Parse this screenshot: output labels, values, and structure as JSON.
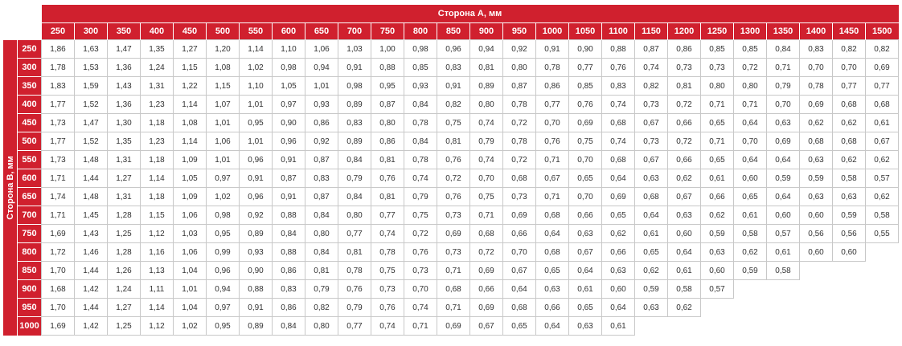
{
  "header": {
    "side_a_title": "Сторона А, мм",
    "side_b_title": "Сторона В, мм"
  },
  "columns": [
    "250",
    "300",
    "350",
    "400",
    "450",
    "500",
    "550",
    "600",
    "650",
    "700",
    "750",
    "800",
    "850",
    "900",
    "950",
    "1000",
    "1050",
    "1100",
    "1150",
    "1200",
    "1250",
    "1300",
    "1350",
    "1400",
    "1450",
    "1500"
  ],
  "rows": [
    {
      "label": "250",
      "values": [
        "1,86",
        "1,63",
        "1,47",
        "1,35",
        "1,27",
        "1,20",
        "1,14",
        "1,10",
        "1,06",
        "1,03",
        "1,00",
        "0,98",
        "0,96",
        "0,94",
        "0,92",
        "0,91",
        "0,90",
        "0,88",
        "0,87",
        "0,86",
        "0,85",
        "0,85",
        "0,84",
        "0,83",
        "0,82",
        "0,82"
      ]
    },
    {
      "label": "300",
      "values": [
        "1,78",
        "1,53",
        "1,36",
        "1,24",
        "1,15",
        "1,08",
        "1,02",
        "0,98",
        "0,94",
        "0,91",
        "0,88",
        "0,85",
        "0,83",
        "0,81",
        "0,80",
        "0,78",
        "0,77",
        "0,76",
        "0,74",
        "0,73",
        "0,73",
        "0,72",
        "0,71",
        "0,70",
        "0,70",
        "0,69"
      ]
    },
    {
      "label": "350",
      "values": [
        "1,83",
        "1,59",
        "1,43",
        "1,31",
        "1,22",
        "1,15",
        "1,10",
        "1,05",
        "1,01",
        "0,98",
        "0,95",
        "0,93",
        "0,91",
        "0,89",
        "0,87",
        "0,86",
        "0,85",
        "0,83",
        "0,82",
        "0,81",
        "0,80",
        "0,80",
        "0,79",
        "0,78",
        "0,77",
        "0,77"
      ]
    },
    {
      "label": "400",
      "values": [
        "1,77",
        "1,52",
        "1,36",
        "1,23",
        "1,14",
        "1,07",
        "1,01",
        "0,97",
        "0,93",
        "0,89",
        "0,87",
        "0,84",
        "0,82",
        "0,80",
        "0,78",
        "0,77",
        "0,76",
        "0,74",
        "0,73",
        "0,72",
        "0,71",
        "0,71",
        "0,70",
        "0,69",
        "0,68",
        "0,68"
      ]
    },
    {
      "label": "450",
      "values": [
        "1,73",
        "1,47",
        "1,30",
        "1,18",
        "1,08",
        "1,01",
        "0,95",
        "0,90",
        "0,86",
        "0,83",
        "0,80",
        "0,78",
        "0,75",
        "0,74",
        "0,72",
        "0,70",
        "0,69",
        "0,68",
        "0,67",
        "0,66",
        "0,65",
        "0,64",
        "0,63",
        "0,62",
        "0,62",
        "0,61"
      ]
    },
    {
      "label": "500",
      "values": [
        "1,77",
        "1,52",
        "1,35",
        "1,23",
        "1,14",
        "1,06",
        "1,01",
        "0,96",
        "0,92",
        "0,89",
        "0,86",
        "0,84",
        "0,81",
        "0,79",
        "0,78",
        "0,76",
        "0,75",
        "0,74",
        "0,73",
        "0,72",
        "0,71",
        "0,70",
        "0,69",
        "0,68",
        "0,68",
        "0,67"
      ]
    },
    {
      "label": "550",
      "values": [
        "1,73",
        "1,48",
        "1,31",
        "1,18",
        "1,09",
        "1,01",
        "0,96",
        "0,91",
        "0,87",
        "0,84",
        "0,81",
        "0,78",
        "0,76",
        "0,74",
        "0,72",
        "0,71",
        "0,70",
        "0,68",
        "0,67",
        "0,66",
        "0,65",
        "0,64",
        "0,64",
        "0,63",
        "0,62",
        "0,62"
      ]
    },
    {
      "label": "600",
      "values": [
        "1,71",
        "1,44",
        "1,27",
        "1,14",
        "1,05",
        "0,97",
        "0,91",
        "0,87",
        "0,83",
        "0,79",
        "0,76",
        "0,74",
        "0,72",
        "0,70",
        "0,68",
        "0,67",
        "0,65",
        "0,64",
        "0,63",
        "0,62",
        "0,61",
        "0,60",
        "0,59",
        "0,59",
        "0,58",
        "0,57"
      ]
    },
    {
      "label": "650",
      "values": [
        "1,74",
        "1,48",
        "1,31",
        "1,18",
        "1,09",
        "1,02",
        "0,96",
        "0,91",
        "0,87",
        "0,84",
        "0,81",
        "0,79",
        "0,76",
        "0,75",
        "0,73",
        "0,71",
        "0,70",
        "0,69",
        "0,68",
        "0,67",
        "0,66",
        "0,65",
        "0,64",
        "0,63",
        "0,63",
        "0,62"
      ]
    },
    {
      "label": "700",
      "values": [
        "1,71",
        "1,45",
        "1,28",
        "1,15",
        "1,06",
        "0,98",
        "0,92",
        "0,88",
        "0,84",
        "0,80",
        "0,77",
        "0,75",
        "0,73",
        "0,71",
        "0,69",
        "0,68",
        "0,66",
        "0,65",
        "0,64",
        "0,63",
        "0,62",
        "0,61",
        "0,60",
        "0,60",
        "0,59",
        "0,58"
      ]
    },
    {
      "label": "750",
      "values": [
        "1,69",
        "1,43",
        "1,25",
        "1,12",
        "1,03",
        "0,95",
        "0,89",
        "0,84",
        "0,80",
        "0,77",
        "0,74",
        "0,72",
        "0,69",
        "0,68",
        "0,66",
        "0,64",
        "0,63",
        "0,62",
        "0,61",
        "0,60",
        "0,59",
        "0,58",
        "0,57",
        "0,56",
        "0,56",
        "0,55"
      ]
    },
    {
      "label": "800",
      "values": [
        "1,72",
        "1,46",
        "1,28",
        "1,16",
        "1,06",
        "0,99",
        "0,93",
        "0,88",
        "0,84",
        "0,81",
        "0,78",
        "0,76",
        "0,73",
        "0,72",
        "0,70",
        "0,68",
        "0,67",
        "0,66",
        "0,65",
        "0,64",
        "0,63",
        "0,62",
        "0,61",
        "0,60",
        "0,60"
      ]
    },
    {
      "label": "850",
      "values": [
        "1,70",
        "1,44",
        "1,26",
        "1,13",
        "1,04",
        "0,96",
        "0,90",
        "0,86",
        "0,81",
        "0,78",
        "0,75",
        "0,73",
        "0,71",
        "0,69",
        "0,67",
        "0,65",
        "0,64",
        "0,63",
        "0,62",
        "0,61",
        "0,60",
        "0,59",
        "0,58"
      ]
    },
    {
      "label": "900",
      "values": [
        "1,68",
        "1,42",
        "1,24",
        "1,11",
        "1,01",
        "0,94",
        "0,88",
        "0,83",
        "0,79",
        "0,76",
        "0,73",
        "0,70",
        "0,68",
        "0,66",
        "0,64",
        "0,63",
        "0,61",
        "0,60",
        "0,59",
        "0,58",
        "0,57"
      ]
    },
    {
      "label": "950",
      "values": [
        "1,70",
        "1,44",
        "1,27",
        "1,14",
        "1,04",
        "0,97",
        "0,91",
        "0,86",
        "0,82",
        "0,79",
        "0,76",
        "0,74",
        "0,71",
        "0,69",
        "0,68",
        "0,66",
        "0,65",
        "0,64",
        "0,63",
        "0,62"
      ]
    },
    {
      "label": "1000",
      "values": [
        "1,69",
        "1,42",
        "1,25",
        "1,12",
        "1,02",
        "0,95",
        "0,89",
        "0,84",
        "0,80",
        "0,77",
        "0,74",
        "0,71",
        "0,69",
        "0,67",
        "0,65",
        "0,64",
        "0,63",
        "0,61"
      ]
    }
  ],
  "colors": {
    "accent": "#d0202e",
    "grid": "#c8c8c8",
    "text": "#333333"
  }
}
